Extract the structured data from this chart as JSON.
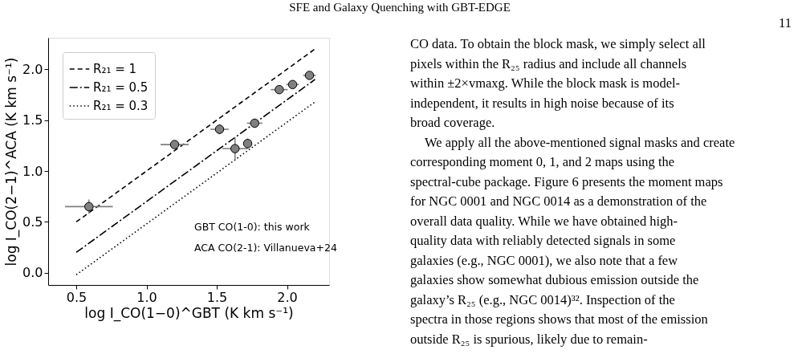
{
  "chart_data": {
    "type": "scatter",
    "title": "SFE and Galaxy Quenching with GBT-EDGE",
    "xlabel": "log I_CO(1−0)^GBT (K km s⁻¹)",
    "ylabel": "log I_CO(2−1)^ACA (K km s⁻¹)",
    "xlim": [
      0.3,
      2.3
    ],
    "ylim": [
      -0.12,
      2.31
    ],
    "xticks": [
      0.5,
      {
        "value": 1,
        "label": "1.0"
      },
      1.5,
      {
        "value": 2,
        "label": "2.0"
      }
    ],
    "yticks": [
      {
        "value": 0,
        "label": "0.0"
      },
      0.5,
      {
        "value": 1,
        "label": "1.0"
      },
      1.5,
      {
        "value": 2,
        "label": "2.0"
      }
    ],
    "grid": false,
    "legend": "top left",
    "marker": "circle",
    "series": [
      {
        "name": "R₂₁ = 1",
        "type": "line",
        "marker": "none",
        "line_style": "dashed",
        "color": "#000000",
        "x": [
          0.5,
          2.2
        ],
        "values": [
          0.5,
          2.2
        ]
      },
      {
        "name": "R₂₁ = 0.5",
        "type": "line",
        "marker": "none",
        "line_style": "dashdot",
        "color": "#000000",
        "x": [
          0.5,
          2.2
        ],
        "values": [
          0.2,
          1.9
        ]
      },
      {
        "name": "R₂₁ = 0.3",
        "type": "line",
        "marker": "none",
        "line_style": "dotted",
        "color": "#000000",
        "x": [
          0.5,
          2.2
        ],
        "values": [
          -0.02,
          1.68
        ]
      },
      {
        "color": "#808080",
        "x": [
          0.59,
          1.2,
          1.52,
          1.63,
          1.72,
          1.77,
          1.945,
          2.04,
          2.16
        ],
        "values": [
          0.65,
          1.26,
          1.41,
          1.22,
          1.27,
          1.47,
          1.8,
          1.85,
          1.94
        ],
        "errors": [
          0.07,
          0.03,
          0.05,
          0.11,
          0.05,
          0.04,
          0.03,
          0.03,
          0.03
        ],
        "xerrors": [
          0.17,
          0.1,
          0.065,
          0.09,
          0.03,
          0.055,
          0.06,
          0.045,
          0.045
        ]
      }
    ],
    "annotations": [
      "GBT CO(1-0): this work",
      "ACA CO(2-1): Villanueva+24",
      "11",
      "CO data. To obtain the block mask, we simply select all pixels within the R₂₅ radius and include all channels within ±2×vmaxg. While the block mask is model-independent, it results in high noise because of its broad coverage.",
      "We apply all the above-mentioned signal masks and create corresponding moment 0, 1, and 2 maps using the spectral-cube package. Figure 6 presents the moment maps for NGC 0001 and NGC 0014 as a demonstration of the overall data quality. While we have obtained high-quality data with reliably detected signals in some galaxies (e.g., NGC 0001), we also note that a few galaxies show somewhat dubious emission outside the galaxy’s R₂₅ (e.g., NGC 0014)³². Inspection of the spectra in those regions shows that most of the emission outside R₂₅ is spurious, likely due to remain-"
    ]
  }
}
